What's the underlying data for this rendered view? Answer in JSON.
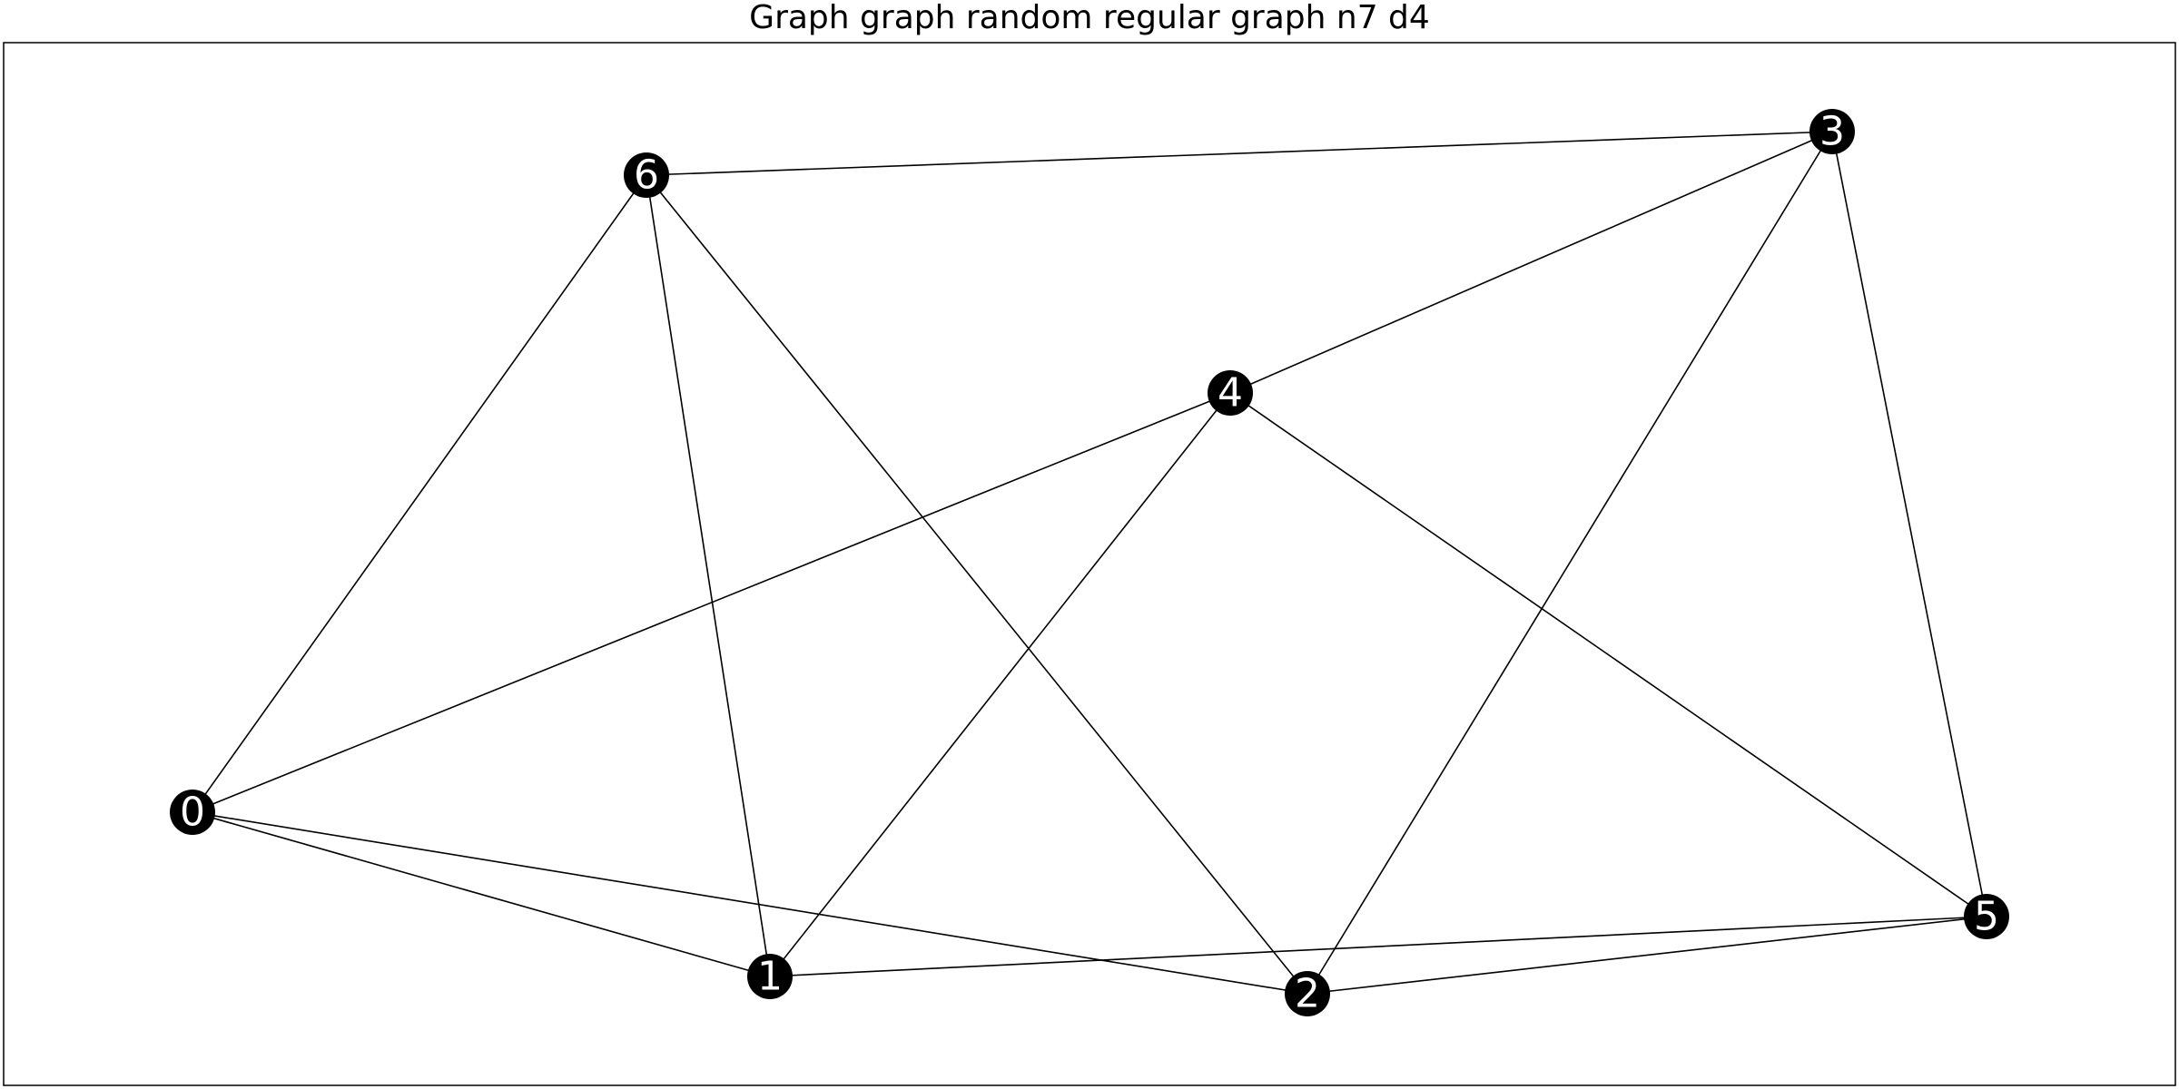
{
  "title": "Graph graph random regular graph n7 d4",
  "colors": {
    "node_fill": "#000000",
    "node_label": "#ffffff",
    "edge": "#000000",
    "frame": "#000000",
    "background": "#ffffff"
  },
  "graph": {
    "nodes": [
      {
        "id": "0",
        "label": "0"
      },
      {
        "id": "1",
        "label": "1"
      },
      {
        "id": "2",
        "label": "2"
      },
      {
        "id": "3",
        "label": "3"
      },
      {
        "id": "4",
        "label": "4"
      },
      {
        "id": "5",
        "label": "5"
      },
      {
        "id": "6",
        "label": "6"
      }
    ],
    "edges": [
      [
        "0",
        "6"
      ],
      [
        "0",
        "4"
      ],
      [
        "0",
        "1"
      ],
      [
        "0",
        "2"
      ],
      [
        "6",
        "3"
      ],
      [
        "6",
        "1"
      ],
      [
        "6",
        "2"
      ],
      [
        "4",
        "3"
      ],
      [
        "4",
        "1"
      ],
      [
        "4",
        "5"
      ],
      [
        "3",
        "2"
      ],
      [
        "3",
        "5"
      ],
      [
        "1",
        "5"
      ],
      [
        "2",
        "5"
      ]
    ]
  }
}
